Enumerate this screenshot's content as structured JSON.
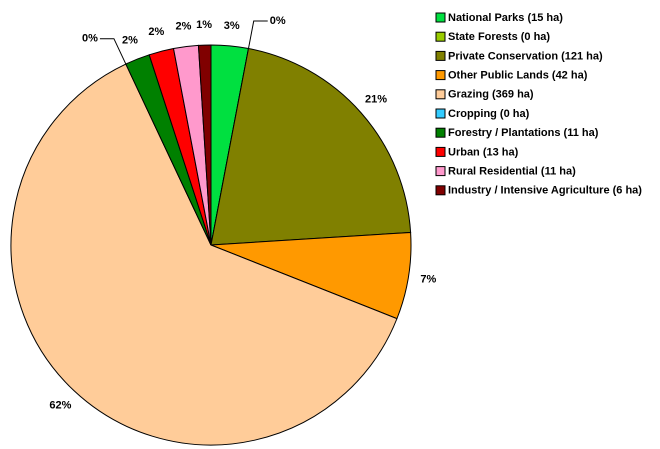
{
  "chart_data": {
    "type": "pie",
    "categories": [
      "National Parks (15 ha)",
      "State Forests (0 ha)",
      "Private Conservation (121 ha)",
      "Other Public Lands (42 ha)",
      "Grazing (369 ha)",
      "Cropping (0 ha)",
      "Forestry / Plantations (11 ha)",
      "Urban (13 ha)",
      "Rural Residential (11 ha)",
      "Industry / Intensive Agriculture (6 ha)"
    ],
    "values": [
      3,
      0,
      21,
      7,
      62,
      0,
      2,
      2,
      2,
      1
    ],
    "value_labels": [
      "3%",
      "0%",
      "21%",
      "7%",
      "62%",
      "0%",
      "2%",
      "2%",
      "2%",
      "1%"
    ],
    "colors": [
      "#00e040",
      "#99cc00",
      "#808000",
      "#ff9900",
      "#ffcc99",
      "#33ccff",
      "#008000",
      "#ff0000",
      "#ff99cc",
      "#800000"
    ],
    "legend": "right"
  }
}
